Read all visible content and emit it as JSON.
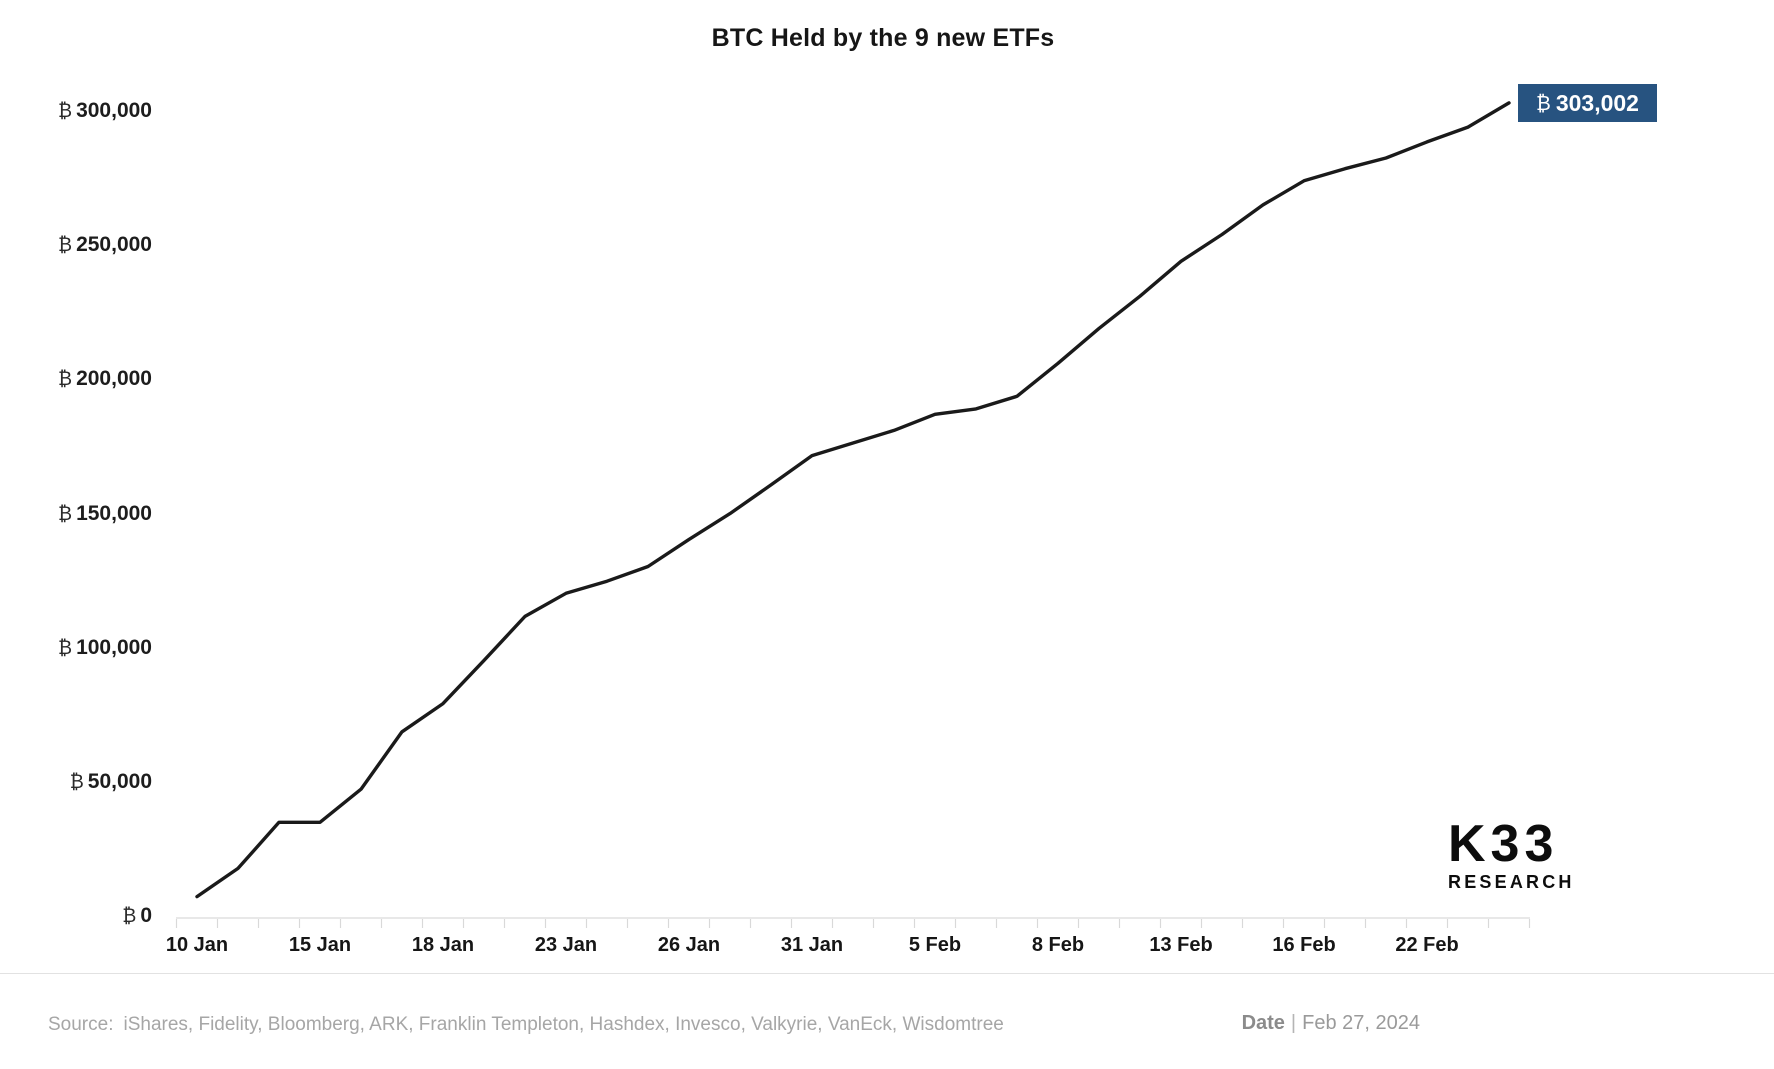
{
  "title": "BTC Held by the 9 new ETFs",
  "callout": {
    "currency_symbol": "₿",
    "value_label": "303,002"
  },
  "logo": {
    "line1": "K33",
    "line2": "RESEARCH"
  },
  "footer": {
    "source_label": "Source:",
    "source_text": "iShares, Fidelity, Bloomberg, ARK, Franklin Templeton, Hashdex, Invesco, Valkyrie, VanEck, Wisdomtree",
    "date_label": "Date",
    "date_separator": "|",
    "date_value": "Feb 27, 2024"
  },
  "chart_data": {
    "type": "line",
    "title": "BTC Held by the 9 new ETFs",
    "x": [
      "10 Jan",
      "11 Jan",
      "12 Jan",
      "15 Jan",
      "16 Jan",
      "17 Jan",
      "18 Jan",
      "19 Jan",
      "22 Jan",
      "23 Jan",
      "24 Jan",
      "25 Jan",
      "26 Jan",
      "29 Jan",
      "30 Jan",
      "31 Jan",
      "1 Feb",
      "2 Feb",
      "5 Feb",
      "6 Feb",
      "7 Feb",
      "8 Feb",
      "9 Feb",
      "12 Feb",
      "13 Feb",
      "14 Feb",
      "15 Feb",
      "16 Feb",
      "20 Feb",
      "21 Feb",
      "22 Feb",
      "23 Feb",
      "26 Feb"
    ],
    "values": [
      7300,
      17800,
      35000,
      35000,
      47300,
      68700,
      79200,
      95300,
      111700,
      120300,
      124800,
      130300,
      140400,
      150000,
      160700,
      171600,
      176300,
      181000,
      187000,
      189000,
      193700,
      206000,
      219000,
      231000,
      244000,
      254000,
      265000,
      274000,
      278500,
      282500,
      288500,
      294000,
      303002
    ],
    "last_value": 303002,
    "last_value_label": "₿ 303,002",
    "x_tick_indices": [
      0,
      3,
      6,
      9,
      12,
      15,
      18,
      21,
      24,
      27,
      30
    ],
    "x_tick_labels": [
      "10 Jan",
      "15 Jan",
      "18 Jan",
      "23 Jan",
      "26 Jan",
      "31 Jan",
      "5 Feb",
      "8 Feb",
      "13 Feb",
      "16 Feb",
      "22 Feb"
    ],
    "y_ticks": [
      {
        "value": 0,
        "label": "0"
      },
      {
        "value": 50000,
        "label": "50,000"
      },
      {
        "value": 100000,
        "label": "100,000"
      },
      {
        "value": 150000,
        "label": "150,000"
      },
      {
        "value": 200000,
        "label": "200,000"
      },
      {
        "value": 250000,
        "label": "250,000"
      },
      {
        "value": 300000,
        "label": "300,000"
      }
    ],
    "y_tick_prefix": "₿",
    "ylim": [
      0,
      320000
    ],
    "grid": false,
    "legend": "none",
    "line_color": "#1a1a1a"
  },
  "colors": {
    "callout_background": "#275380",
    "line": "#1a1a1a",
    "axis_gray": "#d9d9d9",
    "footer_text": "#a6a6a6"
  }
}
